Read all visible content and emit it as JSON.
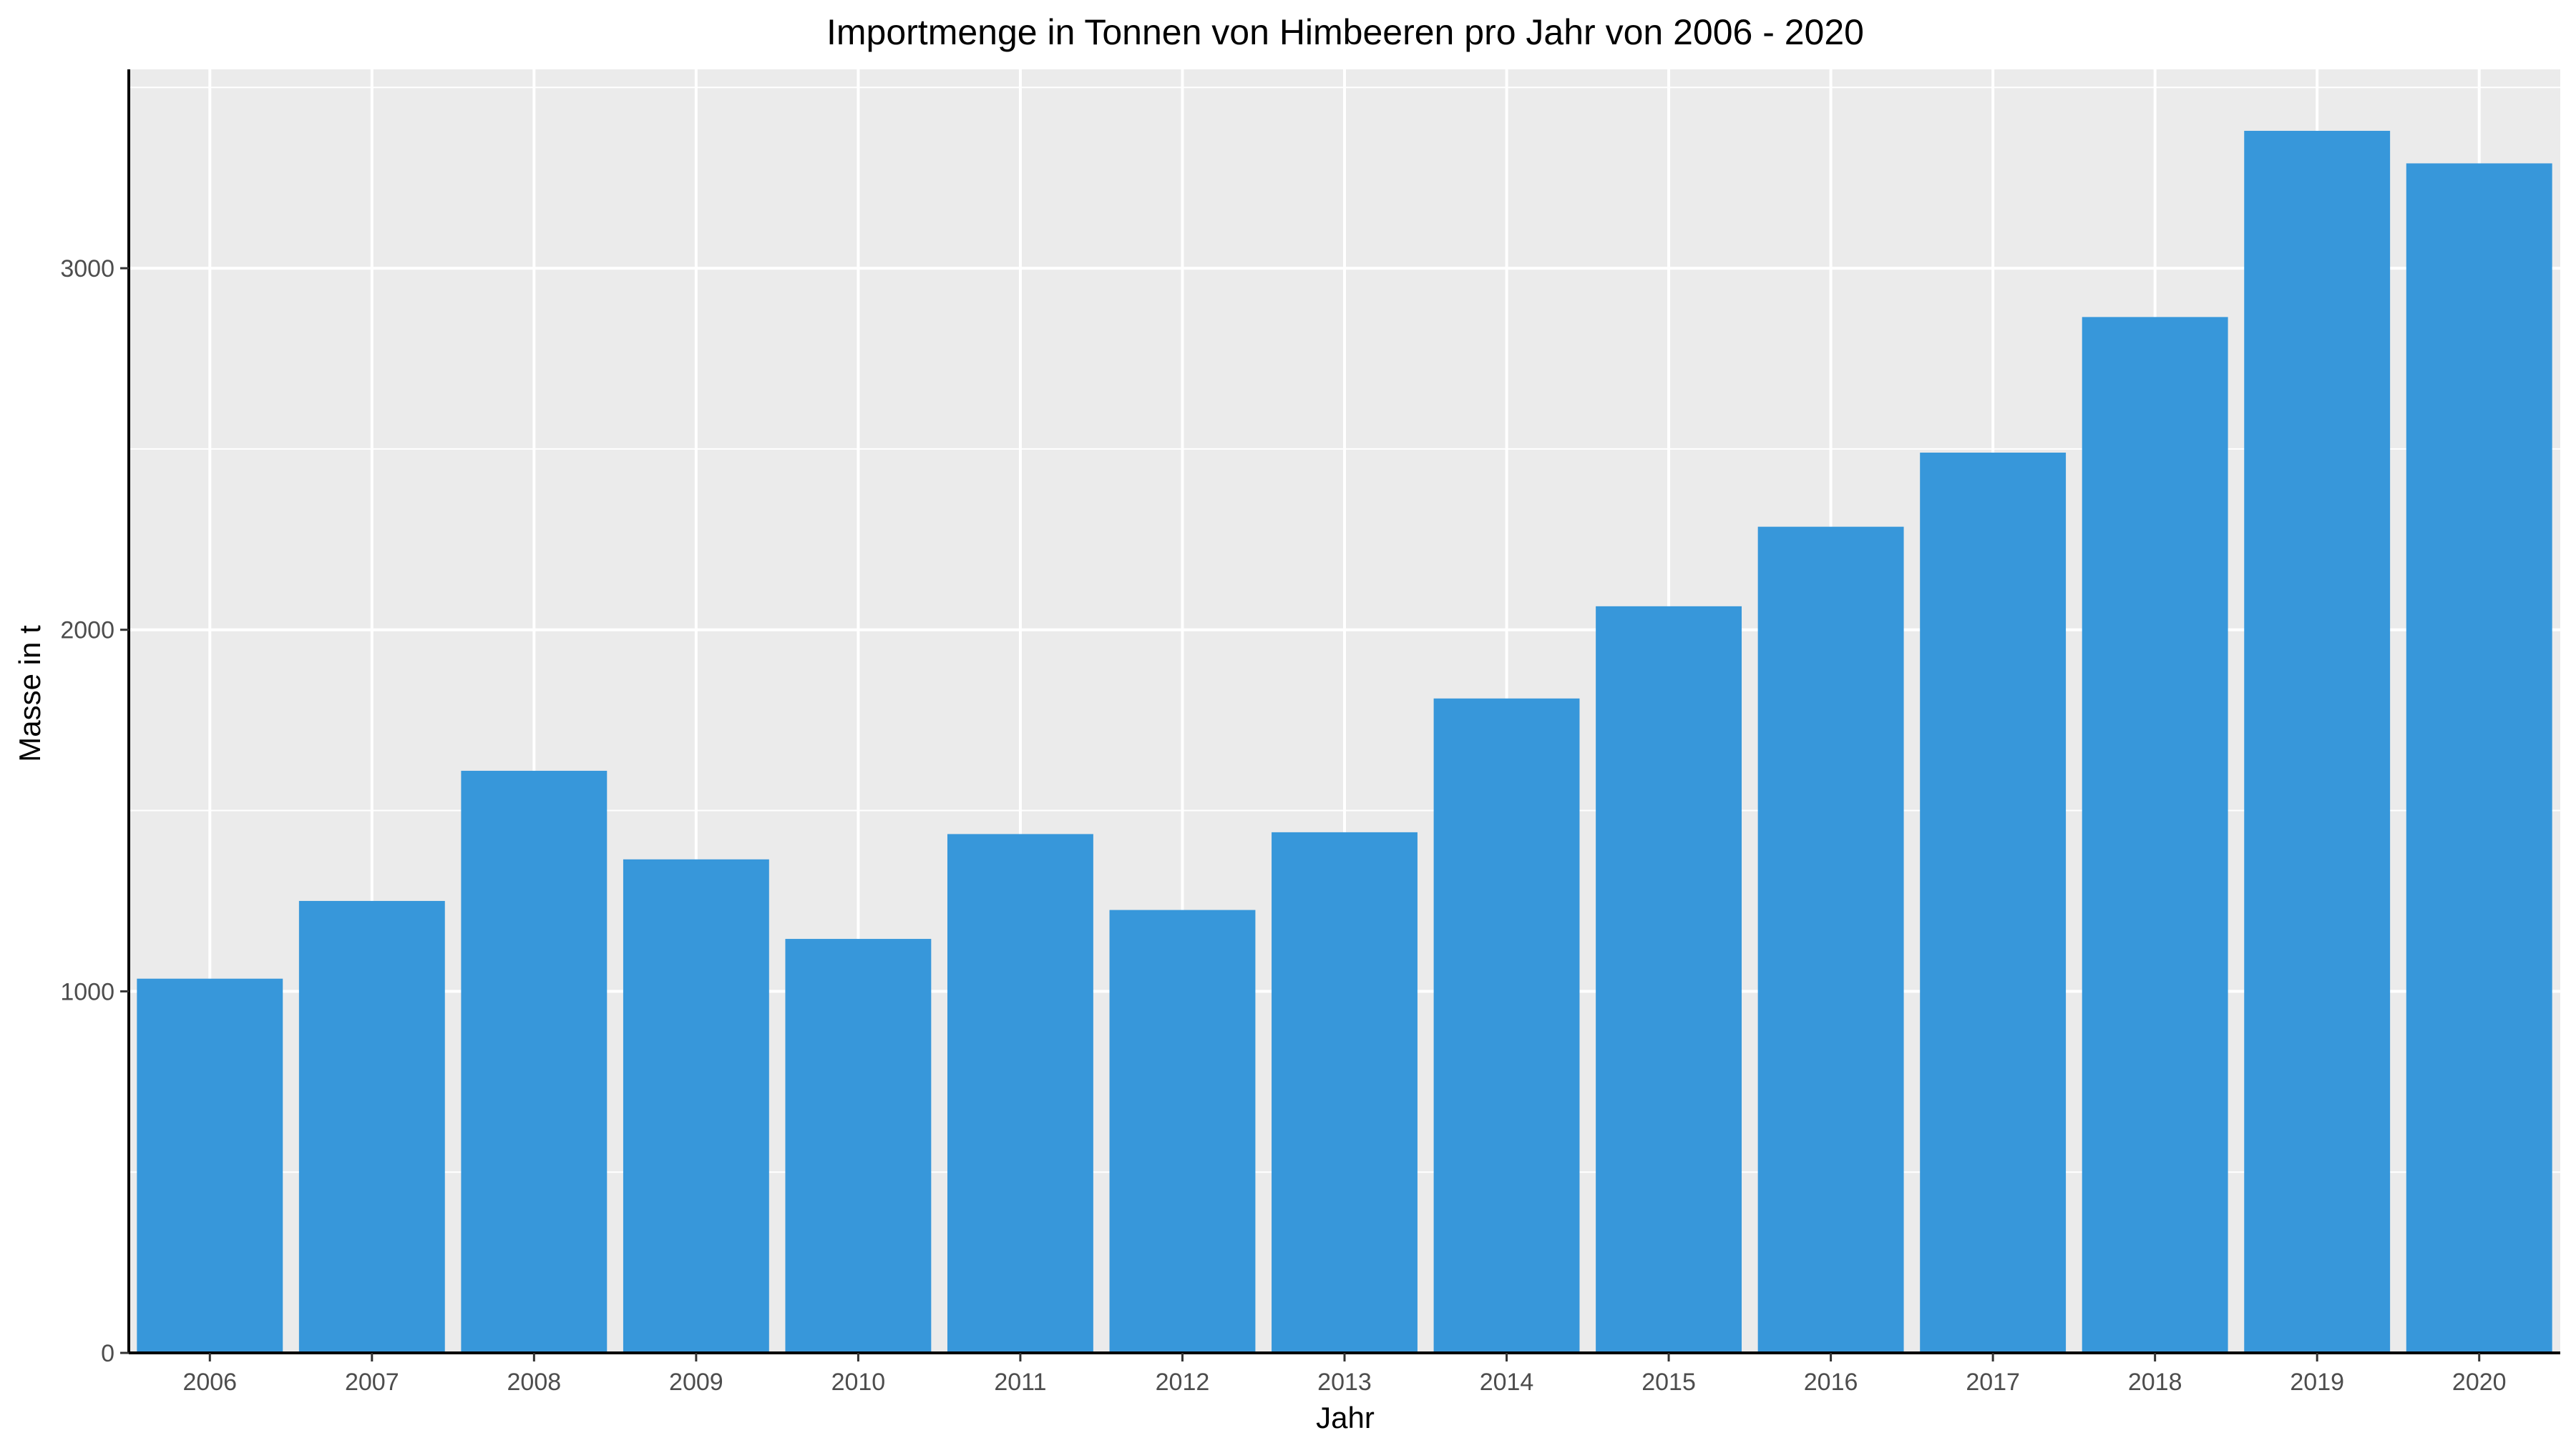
{
  "chart_data": {
    "type": "bar",
    "title": "Importmenge in Tonnen von Himbeeren pro Jahr von 2006 - 2020",
    "xlabel": "Jahr",
    "ylabel": "Masse in t",
    "categories": [
      "2006",
      "2007",
      "2008",
      "2009",
      "2010",
      "2011",
      "2012",
      "2013",
      "2014",
      "2015",
      "2016",
      "2017",
      "2018",
      "2019",
      "2020"
    ],
    "values": [
      1035,
      1250,
      1610,
      1365,
      1145,
      1435,
      1225,
      1440,
      1810,
      2065,
      2285,
      2490,
      2865,
      3380,
      3290
    ],
    "ylim": [
      0,
      3550
    ],
    "yticks": [
      0,
      1000,
      2000,
      3000
    ],
    "ytick_labels": [
      "0",
      "1000",
      "2000",
      "3000"
    ],
    "grid": true,
    "legend": "none",
    "colors": {
      "bar": "#3797da",
      "panel": "#ebebeb",
      "grid": "#ffffff",
      "axis": "#000000",
      "tick_text": "#4d4d4d"
    }
  }
}
